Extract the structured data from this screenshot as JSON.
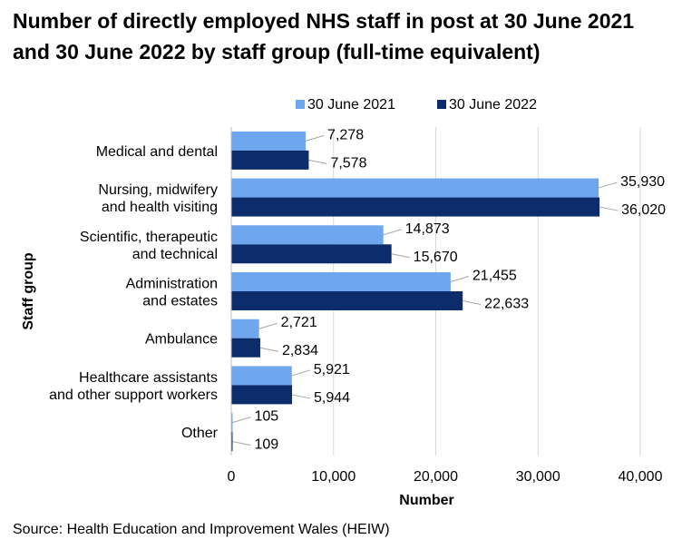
{
  "title": "Number of directly employed NHS staff in post at 30 June 2021 and 30 June 2022 by staff group (full-time equivalent)",
  "source": "Source: Health Education and Improvement Wales (HEIW)",
  "colors": {
    "series_2021": "#6fa7ee",
    "series_2022": "#0c2c6b",
    "gridline": "#d9d9d9",
    "axis": "#bfbfbf",
    "leader": "#a6a6a6"
  },
  "chart_data": {
    "type": "bar",
    "orientation": "horizontal",
    "title": "Number of directly employed NHS staff in post at 30 June 2021 and 30 June 2022 by staff group (full-time equivalent)",
    "xlabel": "Number",
    "ylabel": "Staff group",
    "xlim": [
      0,
      40000
    ],
    "xticks": [
      0,
      10000,
      20000,
      30000,
      40000
    ],
    "xtick_labels": [
      "0",
      "10,000",
      "20,000",
      "30,000",
      "40,000"
    ],
    "grid": true,
    "legend_position": "top",
    "categories": [
      [
        "Medical and dental"
      ],
      [
        "Nursing, midwifery",
        "and health visiting"
      ],
      [
        "Scientific, therapeutic",
        "and technical"
      ],
      [
        "Administration",
        "and estates"
      ],
      [
        "Ambulance"
      ],
      [
        "Healthcare assistants",
        "and other support workers"
      ],
      [
        "Other"
      ]
    ],
    "series": [
      {
        "name": "30 June 2021",
        "values": [
          7278,
          35930,
          14873,
          21455,
          2721,
          5921,
          105
        ],
        "labels": [
          "7,278",
          "35,930",
          "14,873",
          "21,455",
          "2,721",
          "5,921",
          "105"
        ]
      },
      {
        "name": "30 June 2022",
        "values": [
          7578,
          36020,
          15670,
          22633,
          2834,
          5944,
          109
        ],
        "labels": [
          "7,578",
          "36,020",
          "15,670",
          "22,633",
          "2,834",
          "5,944",
          "109"
        ]
      }
    ]
  }
}
